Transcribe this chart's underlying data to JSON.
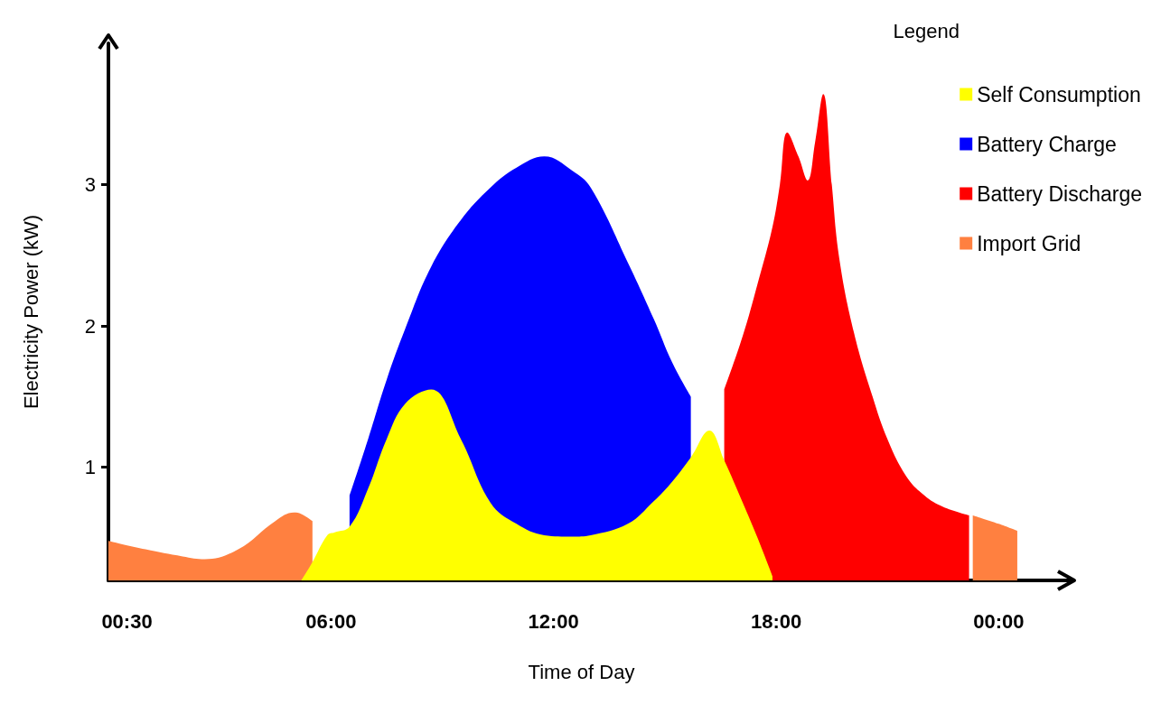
{
  "chart_data": {
    "type": "area",
    "stacked": true,
    "xlabel": "Time of Day",
    "ylabel": "Electricity Power (kW)",
    "legend_title": "Legend",
    "legend": "top right",
    "grid": false,
    "marker": "none",
    "x": [
      0,
      1,
      2,
      2.6,
      3.5,
      4.5,
      5,
      5.2,
      5.5,
      5.9,
      6.1,
      6.5,
      7,
      7.5,
      8,
      8.7,
      9.5,
      10.3,
      11,
      11.75,
      12.5,
      13,
      14,
      14.7,
      15.2,
      15.7,
      16.2,
      16.6,
      17.1,
      17.5,
      17.9,
      18.1,
      18.3,
      18.6,
      18.85,
      19.05,
      19.27,
      19.5,
      19.7,
      20.1,
      20.6,
      21,
      21.5,
      22,
      22.5,
      23.2,
      23.3,
      24,
      24.5
    ],
    "xlim": [
      0,
      25.5
    ],
    "xticks": [
      {
        "value": 0.5,
        "label": "00:30"
      },
      {
        "value": 6,
        "label": "06:00"
      },
      {
        "value": 12,
        "label": "12:00"
      },
      {
        "value": 18,
        "label": "18:00"
      },
      {
        "value": 24,
        "label": "00:00"
      }
    ],
    "ylim": [
      0.2,
      4
    ],
    "yticks": [
      1,
      2,
      3
    ],
    "series": [
      {
        "name": "Self Consumption",
        "color": "#ffff00",
        "values": [
          null,
          null,
          null,
          null,
          null,
          null,
          null,
          0.2,
          0.33,
          0.52,
          0.54,
          0.58,
          0.85,
          1.2,
          1.45,
          1.55,
          1.2,
          0.75,
          0.6,
          0.52,
          0.51,
          0.52,
          0.6,
          0.76,
          0.9,
          1.07,
          1.26,
          1.05,
          0.75,
          0.5,
          0.23,
          null,
          null,
          null,
          null,
          null,
          null,
          null,
          null,
          null,
          null,
          null,
          null,
          null,
          null,
          null,
          null,
          null,
          null
        ]
      },
      {
        "name": "Battery Charge",
        "color": "#0000ff",
        "values": [
          null,
          null,
          null,
          null,
          null,
          null,
          null,
          null,
          null,
          null,
          null,
          0.22,
          0.35,
          0.42,
          0.53,
          0.87,
          1.55,
          2.23,
          2.52,
          2.68,
          2.59,
          2.46,
          1.85,
          1.29,
          0.84,
          0.43,
          null,
          null,
          null,
          null,
          null,
          null,
          null,
          null,
          null,
          null,
          null,
          null,
          null,
          null,
          null,
          null,
          null,
          null,
          null,
          null,
          null,
          null,
          null
        ]
      },
      {
        "name": "Battery Discharge",
        "color": "#ff0000",
        "values": [
          null,
          null,
          null,
          null,
          null,
          null,
          null,
          null,
          null,
          null,
          null,
          null,
          null,
          null,
          null,
          null,
          null,
          null,
          null,
          null,
          null,
          null,
          null,
          null,
          null,
          null,
          null,
          0.5,
          1.18,
          1.8,
          2.47,
          3.0,
          3.37,
          3.2,
          3.03,
          3.3,
          3.64,
          3.0,
          2.48,
          1.95,
          1.5,
          1.2,
          0.94,
          0.8,
          0.72,
          0.66,
          null,
          null,
          null
        ]
      },
      {
        "name": "Import Grid",
        "color": "#ff8040",
        "values": [
          0.48,
          0.42,
          0.37,
          0.35,
          0.42,
          0.62,
          0.68,
          0.47,
          0.29,
          null,
          null,
          null,
          null,
          null,
          null,
          null,
          null,
          null,
          null,
          null,
          null,
          null,
          null,
          null,
          null,
          null,
          null,
          null,
          null,
          null,
          null,
          null,
          null,
          null,
          null,
          null,
          null,
          null,
          null,
          null,
          null,
          null,
          null,
          null,
          null,
          null,
          0.66,
          0.6,
          0.55
        ]
      }
    ]
  }
}
